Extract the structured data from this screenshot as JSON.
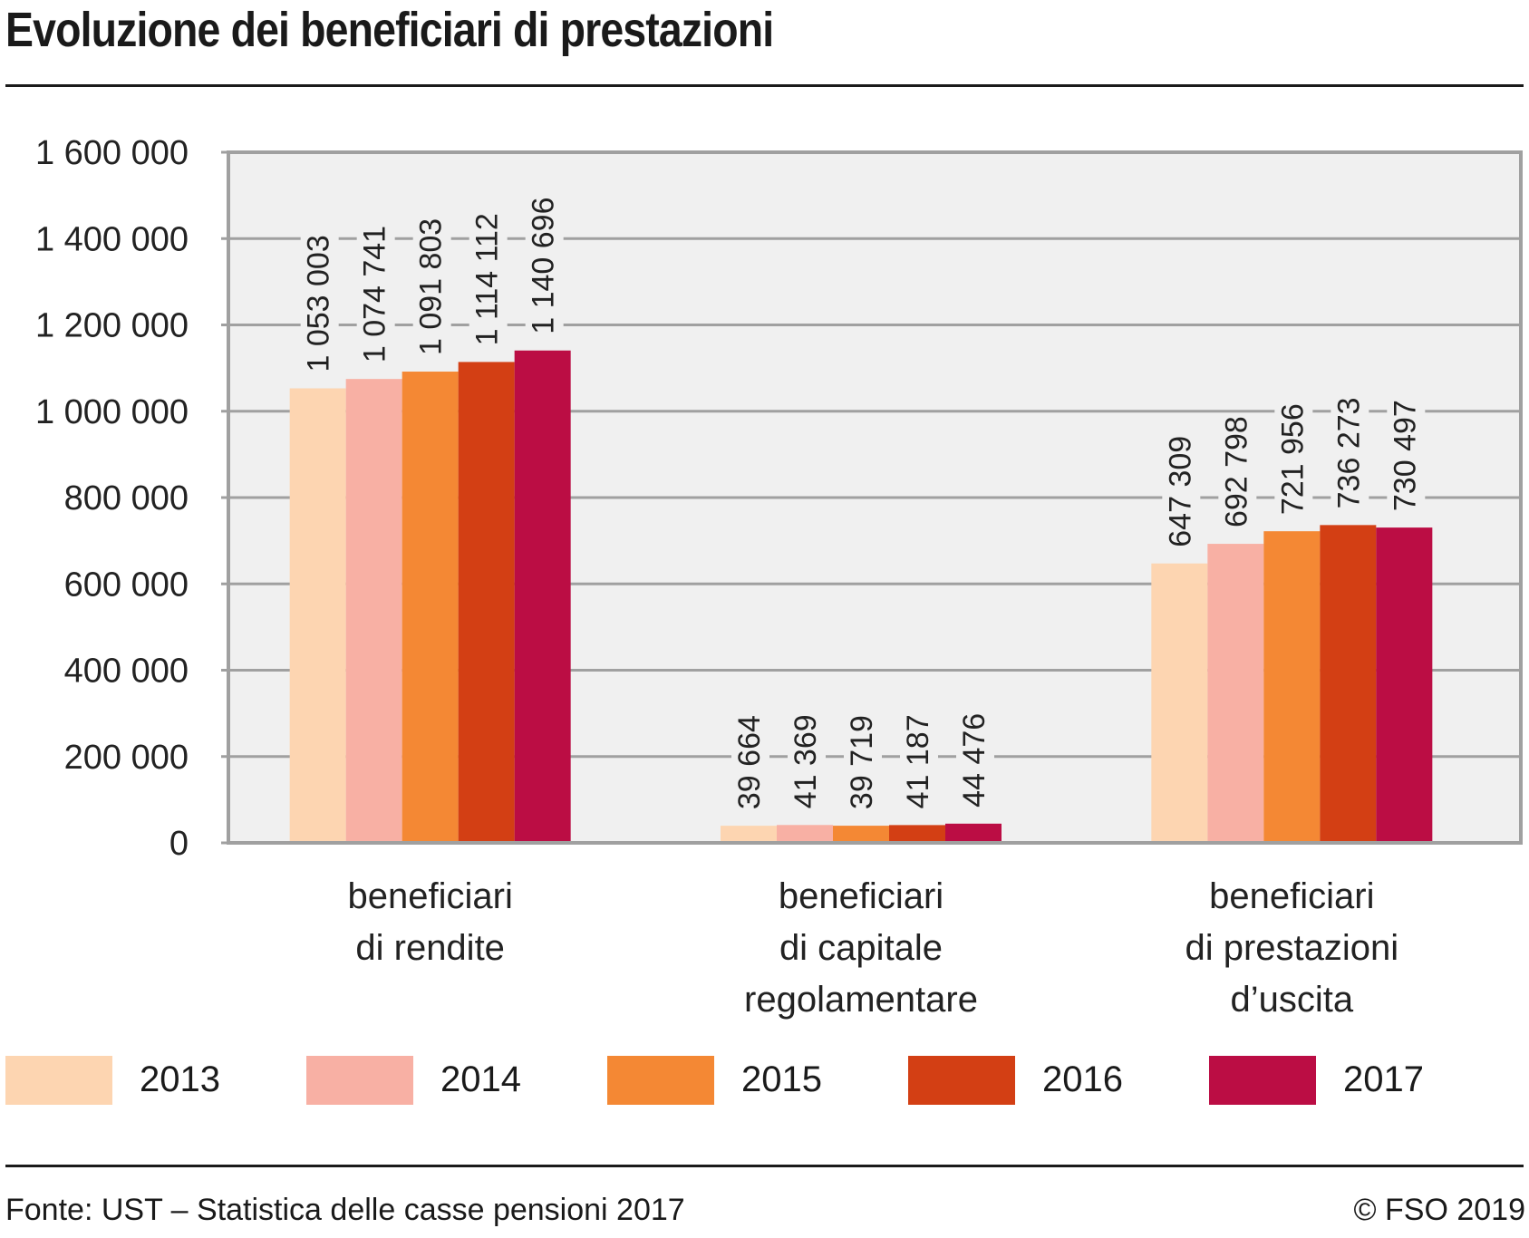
{
  "chart_data": {
    "type": "bar",
    "title": "Evoluzione dei beneficiari di prestazioni",
    "xlabel": "",
    "ylabel": "",
    "ylim": [
      0,
      1600000
    ],
    "yticks": [
      0,
      200000,
      400000,
      600000,
      800000,
      1000000,
      1200000,
      1400000,
      1600000
    ],
    "ytick_labels": [
      "0",
      "200 000",
      "400 000",
      "600 000",
      "800 000",
      "1 000 000",
      "1 200 000",
      "1 400 000",
      "1 600 000"
    ],
    "grid": true,
    "legend_position": "bottom",
    "categories": [
      [
        "beneficiari",
        "di rendite"
      ],
      [
        "beneficiari",
        "di capitale",
        "regolamentare"
      ],
      [
        "beneficiari",
        "di prestazioni",
        "d’uscita"
      ]
    ],
    "series": [
      {
        "name": "2013",
        "color": "#fdd5b1",
        "values": [
          1053003,
          39664,
          647309
        ],
        "labels": [
          "1 053 003",
          "39 664",
          "647 309"
        ]
      },
      {
        "name": "2014",
        "color": "#f8b0a4",
        "values": [
          1074741,
          41369,
          692798
        ],
        "labels": [
          "1 074 741",
          "41 369",
          "692 798"
        ]
      },
      {
        "name": "2015",
        "color": "#f48834",
        "values": [
          1091803,
          39719,
          721956
        ],
        "labels": [
          "1 091 803",
          "39 719",
          "721 956"
        ]
      },
      {
        "name": "2016",
        "color": "#d33f14",
        "values": [
          1114112,
          41187,
          736273
        ],
        "labels": [
          "1 114 112",
          "41 187",
          "736 273"
        ]
      },
      {
        "name": "2017",
        "color": "#bb0d44",
        "values": [
          1140696,
          44476,
          730497
        ],
        "labels": [
          "1 140 696",
          "44 476",
          "730 497"
        ]
      }
    ]
  },
  "footer": {
    "source": "Fonte: UST – Statistica delle casse pensioni 2017",
    "copyright": "© FSO 2019"
  }
}
